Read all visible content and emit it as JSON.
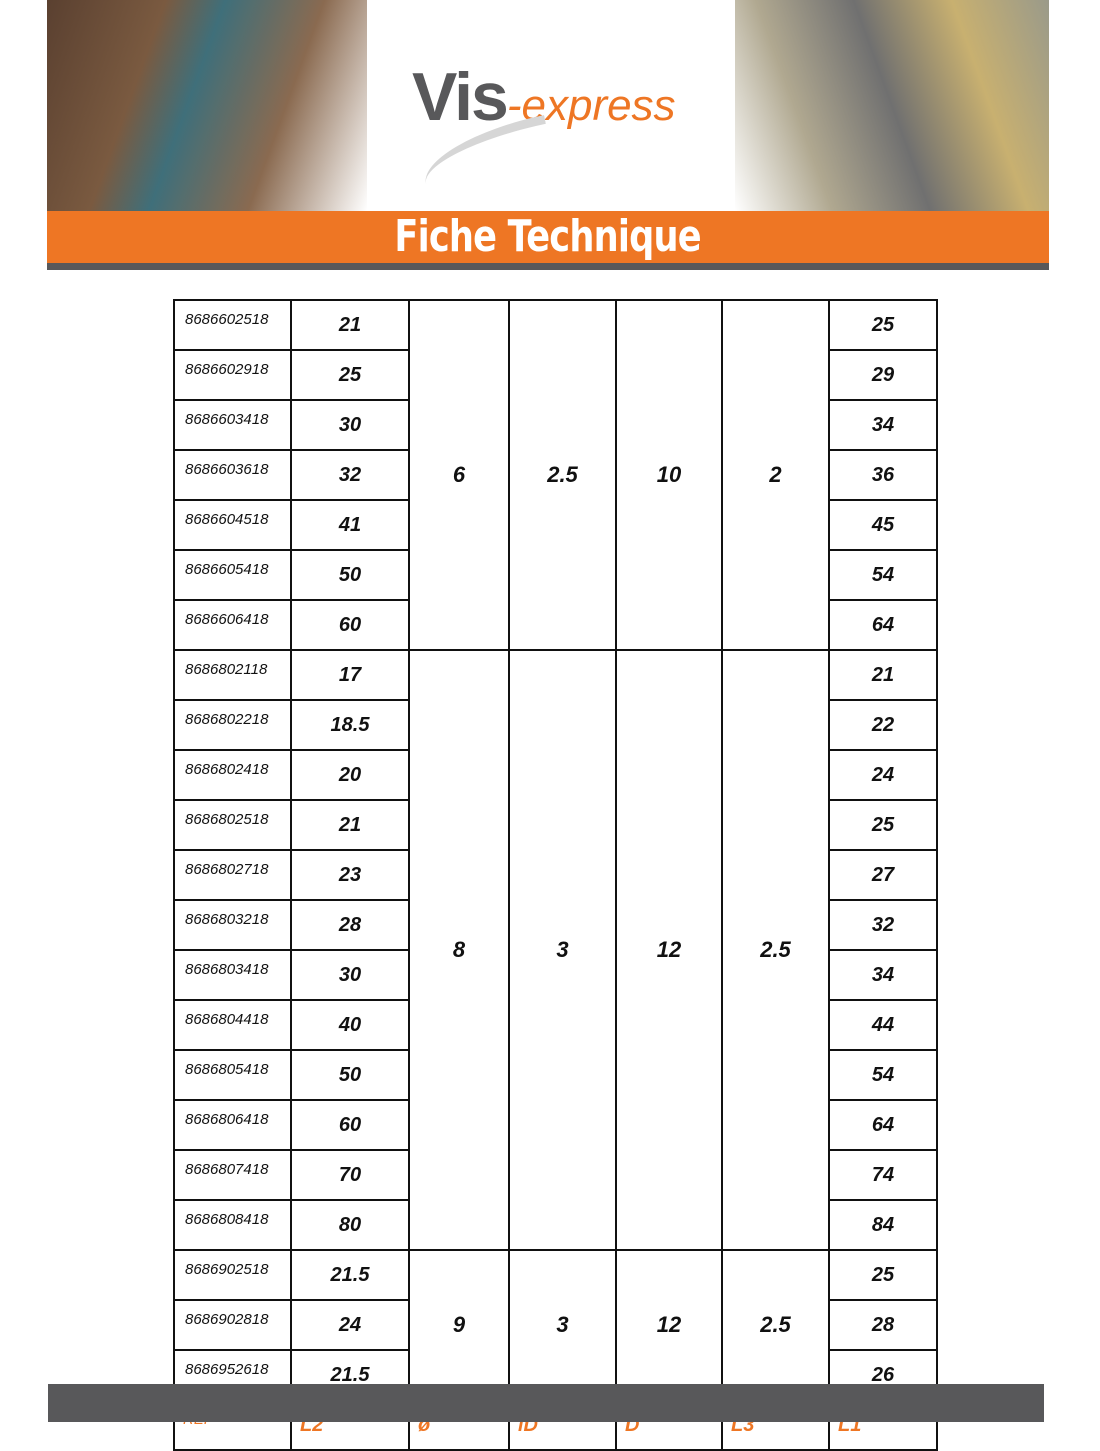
{
  "header": {
    "logo_main": "Vis",
    "logo_accent": "-express",
    "banner_title": "Fiche Technique"
  },
  "colors": {
    "accent": "#ee7624",
    "dark": "#58585a"
  },
  "table": {
    "footer": [
      "REF",
      "L2",
      "ø",
      "iD",
      "D",
      "L3",
      "L1"
    ],
    "groups": [
      {
        "diameter": "6",
        "id": "2.5",
        "d": "10",
        "l3": "2",
        "rows": [
          [
            "8686602518",
            "21",
            "25"
          ],
          [
            "8686602918",
            "25",
            "29"
          ],
          [
            "8686603418",
            "30",
            "34"
          ],
          [
            "8686603618",
            "32",
            "36"
          ],
          [
            "8686604518",
            "41",
            "45"
          ],
          [
            "8686605418",
            "50",
            "54"
          ],
          [
            "8686606418",
            "60",
            "64"
          ]
        ]
      },
      {
        "diameter": "8",
        "id": "3",
        "d": "12",
        "l3": "2.5",
        "rows": [
          [
            "8686802118",
            "17",
            "21"
          ],
          [
            "8686802218",
            "18.5",
            "22"
          ],
          [
            "8686802418",
            "20",
            "24"
          ],
          [
            "8686802518",
            "21",
            "25"
          ],
          [
            "8686802718",
            "23",
            "27"
          ],
          [
            "8686803218",
            "28",
            "32"
          ],
          [
            "8686803418",
            "30",
            "34"
          ],
          [
            "8686804418",
            "40",
            "44"
          ],
          [
            "8686805418",
            "50",
            "54"
          ],
          [
            "8686806418",
            "60",
            "64"
          ],
          [
            "8686807418",
            "70",
            "74"
          ],
          [
            "8686808418",
            "80",
            "84"
          ]
        ]
      },
      {
        "diameter": "9",
        "id": "3",
        "d": "12",
        "l3": "2.5",
        "rows": [
          [
            "8686902518",
            "21.5",
            "25"
          ],
          [
            "8686902818",
            "24",
            "28"
          ],
          [
            "8686952618",
            "21.5",
            "26"
          ]
        ]
      }
    ]
  }
}
